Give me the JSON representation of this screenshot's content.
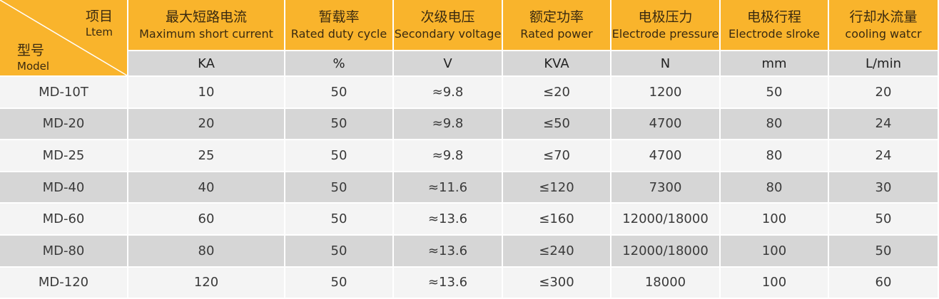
{
  "header": {
    "item_cn": "项目",
    "item_en": "Ltem",
    "model_cn": "型号",
    "model_en": "Model"
  },
  "columns": [
    {
      "cn": "最大短路电流",
      "en": "Maximum short current",
      "unit": "KA"
    },
    {
      "cn": "暂载率",
      "en": "Rated duty cycle",
      "unit": "%"
    },
    {
      "cn": "次级电压",
      "en": "Secondary voltage",
      "unit": "V"
    },
    {
      "cn": "额定功率",
      "en": "Rated power",
      "unit": "KVA"
    },
    {
      "cn": "电极压力",
      "en": "Electrode pressure",
      "unit": "N"
    },
    {
      "cn": "电极行程",
      "en": "Electrode slroke",
      "unit": "mm"
    },
    {
      "cn": "行却水流量",
      "en": "cooling watcr",
      "unit": "L/min"
    }
  ],
  "rows": [
    {
      "model": "MD-10T",
      "cells": [
        "10",
        "50",
        "≈9.8",
        "≤20",
        "1200",
        "50",
        "20"
      ]
    },
    {
      "model": "MD-20",
      "cells": [
        "20",
        "50",
        "≈9.8",
        "≤50",
        "4700",
        "80",
        "24"
      ]
    },
    {
      "model": "MD-25",
      "cells": [
        "25",
        "50",
        "≈9.8",
        "≤70",
        "4700",
        "80",
        "24"
      ]
    },
    {
      "model": "MD-40",
      "cells": [
        "40",
        "50",
        "≈11.6",
        "≤120",
        "7300",
        "80",
        "30"
      ]
    },
    {
      "model": "MD-60",
      "cells": [
        "60",
        "50",
        "≈13.6",
        "≤160",
        "12000/18000",
        "100",
        "50"
      ]
    },
    {
      "model": "MD-80",
      "cells": [
        "80",
        "50",
        "≈13.6",
        "≤240",
        "12000/18000",
        "100",
        "50"
      ]
    },
    {
      "model": "MD-120",
      "cells": [
        "120",
        "50",
        "≈13.6",
        "≤300",
        "18000",
        "100",
        "60"
      ]
    }
  ]
}
